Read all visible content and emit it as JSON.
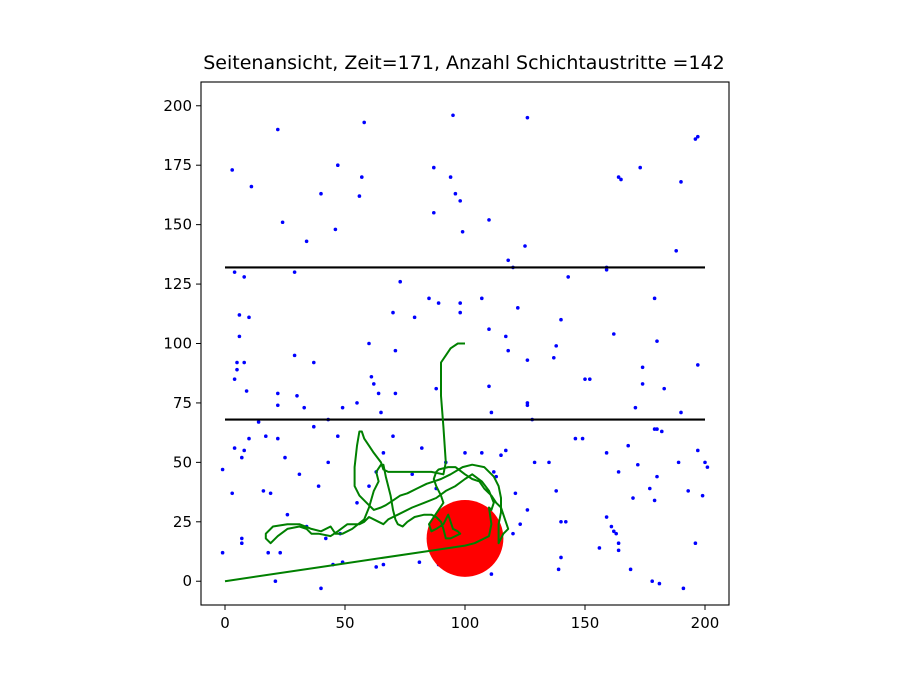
{
  "chart_data": {
    "type": "scatter",
    "title": "Seitenansicht, Zeit=171, Anzahl Schichtaustritte =142",
    "xlabel": "",
    "ylabel": "",
    "xlim": [
      -10,
      210
    ],
    "ylim": [
      -10,
      210
    ],
    "xticks": [
      0,
      50,
      100,
      150,
      200
    ],
    "yticks": [
      0,
      25,
      50,
      75,
      100,
      125,
      150,
      175,
      200
    ],
    "grid": false,
    "legend": "none",
    "colors": {
      "points": "#0000ff",
      "path": "#008000",
      "layers": "#000000",
      "marker": "#ff0000"
    },
    "layer_lines": [
      {
        "y": 68,
        "x": [
          0,
          200
        ]
      },
      {
        "y": 132,
        "x": [
          0,
          200
        ]
      }
    ],
    "current_position": {
      "x": 100,
      "y": 18,
      "radius": 16
    },
    "points": [
      [
        22,
        190
      ],
      [
        58,
        193
      ],
      [
        95,
        196
      ],
      [
        126,
        195
      ],
      [
        3,
        173
      ],
      [
        11,
        166
      ],
      [
        47,
        175
      ],
      [
        57,
        170
      ],
      [
        56,
        162
      ],
      [
        40,
        163
      ],
      [
        24,
        151
      ],
      [
        46,
        148
      ],
      [
        34,
        143
      ],
      [
        87,
        174
      ],
      [
        94,
        170
      ],
      [
        96,
        163
      ],
      [
        98,
        160
      ],
      [
        87,
        155
      ],
      [
        99,
        147
      ],
      [
        110,
        152
      ],
      [
        118,
        135
      ],
      [
        125,
        141
      ],
      [
        120,
        132
      ],
      [
        159,
        132
      ],
      [
        164,
        170
      ],
      [
        165,
        169
      ],
      [
        173,
        174
      ],
      [
        190,
        168
      ],
      [
        196,
        186
      ],
      [
        197,
        187
      ],
      [
        188,
        139
      ],
      [
        4,
        130
      ],
      [
        8,
        128
      ],
      [
        29,
        130
      ],
      [
        6,
        112
      ],
      [
        10,
        111
      ],
      [
        6,
        103
      ],
      [
        5,
        92
      ],
      [
        8,
        92
      ],
      [
        5,
        89
      ],
      [
        4,
        85
      ],
      [
        9,
        80
      ],
      [
        14,
        67
      ],
      [
        22,
        79
      ],
      [
        22,
        74
      ],
      [
        29,
        95
      ],
      [
        30,
        78
      ],
      [
        33,
        73
      ],
      [
        37,
        92
      ],
      [
        43,
        68
      ],
      [
        49,
        73
      ],
      [
        55,
        75
      ],
      [
        60,
        100
      ],
      [
        61,
        86
      ],
      [
        62,
        83
      ],
      [
        64,
        79
      ],
      [
        65,
        71
      ],
      [
        70,
        113
      ],
      [
        71,
        97
      ],
      [
        73,
        126
      ],
      [
        71,
        79
      ],
      [
        79,
        111
      ],
      [
        85,
        119
      ],
      [
        89,
        117
      ],
      [
        88,
        81
      ],
      [
        98,
        117
      ],
      [
        98,
        113
      ],
      [
        107,
        119
      ],
      [
        110,
        82
      ],
      [
        110,
        106
      ],
      [
        111,
        71
      ],
      [
        117,
        103
      ],
      [
        118,
        97
      ],
      [
        122,
        115
      ],
      [
        126,
        93
      ],
      [
        126,
        74
      ],
      [
        126,
        75
      ],
      [
        128,
        68
      ],
      [
        137,
        94
      ],
      [
        138,
        99
      ],
      [
        143,
        128
      ],
      [
        140,
        110
      ],
      [
        150,
        85
      ],
      [
        152,
        85
      ],
      [
        159,
        131
      ],
      [
        162,
        104
      ],
      [
        171,
        73
      ],
      [
        174,
        90
      ],
      [
        174,
        83
      ],
      [
        179,
        119
      ],
      [
        180,
        101
      ],
      [
        183,
        81
      ],
      [
        190,
        71
      ],
      [
        197,
        91
      ],
      [
        180,
        64
      ],
      [
        179,
        64
      ],
      [
        -1,
        47
      ],
      [
        3,
        37
      ],
      [
        4,
        56
      ],
      [
        7,
        52
      ],
      [
        8,
        55
      ],
      [
        10,
        60
      ],
      [
        17,
        61
      ],
      [
        16,
        38
      ],
      [
        19,
        37
      ],
      [
        22,
        60
      ],
      [
        25,
        52
      ],
      [
        31,
        45
      ],
      [
        34,
        23
      ],
      [
        37,
        65
      ],
      [
        39,
        40
      ],
      [
        43,
        50
      ],
      [
        47,
        61
      ],
      [
        42,
        18
      ],
      [
        48,
        20
      ],
      [
        55,
        33
      ],
      [
        60,
        40
      ],
      [
        63,
        46
      ],
      [
        66,
        54
      ],
      [
        70,
        61
      ],
      [
        78,
        45
      ],
      [
        82,
        56
      ],
      [
        88,
        39
      ],
      [
        92,
        50
      ],
      [
        100,
        54
      ],
      [
        107,
        54
      ],
      [
        112,
        46
      ],
      [
        113,
        44
      ],
      [
        115,
        53
      ],
      [
        117,
        55
      ],
      [
        121,
        37
      ],
      [
        123,
        24
      ],
      [
        126,
        30
      ],
      [
        129,
        50
      ],
      [
        135,
        50
      ],
      [
        138,
        38
      ],
      [
        140,
        25
      ],
      [
        142,
        25
      ],
      [
        146,
        60
      ],
      [
        149,
        60
      ],
      [
        156,
        14
      ],
      [
        159,
        27
      ],
      [
        161,
        23
      ],
      [
        162,
        21
      ],
      [
        163,
        20
      ],
      [
        164,
        16
      ],
      [
        164,
        13
      ],
      [
        159,
        54
      ],
      [
        164,
        46
      ],
      [
        168,
        57
      ],
      [
        170,
        35
      ],
      [
        172,
        49
      ],
      [
        177,
        39
      ],
      [
        179,
        34
      ],
      [
        180,
        44
      ],
      [
        182,
        63
      ],
      [
        189,
        50
      ],
      [
        193,
        38
      ],
      [
        197,
        55
      ],
      [
        199,
        36
      ],
      [
        200,
        50
      ],
      [
        201,
        48
      ],
      [
        196,
        16
      ],
      [
        -1,
        12
      ],
      [
        7,
        16
      ],
      [
        7,
        18
      ],
      [
        21,
        0
      ],
      [
        23,
        12
      ],
      [
        18,
        12
      ],
      [
        26,
        28
      ],
      [
        40,
        -3
      ],
      [
        45,
        7
      ],
      [
        49,
        8
      ],
      [
        63,
        6
      ],
      [
        66,
        7
      ],
      [
        81,
        8
      ],
      [
        89,
        7
      ],
      [
        104,
        15
      ],
      [
        107,
        10
      ],
      [
        111,
        3
      ],
      [
        139,
        5
      ],
      [
        140,
        10
      ],
      [
        169,
        5
      ],
      [
        178,
        0
      ],
      [
        181,
        -1
      ],
      [
        191,
        -3
      ],
      [
        120,
        20
      ]
    ],
    "path": [
      [
        0,
        0
      ],
      [
        40,
        6
      ],
      [
        80,
        12
      ],
      [
        100,
        15
      ],
      [
        104,
        16
      ],
      [
        110,
        19
      ],
      [
        111,
        24
      ],
      [
        110,
        31
      ],
      [
        111,
        30
      ],
      [
        112,
        33
      ],
      [
        110,
        38
      ],
      [
        107,
        42
      ],
      [
        103,
        45
      ],
      [
        100,
        43
      ],
      [
        96,
        40
      ],
      [
        92,
        38
      ],
      [
        88,
        35
      ],
      [
        83,
        33
      ],
      [
        78,
        31
      ],
      [
        72,
        28
      ],
      [
        68,
        26
      ],
      [
        66,
        24
      ],
      [
        64,
        25
      ],
      [
        60,
        27
      ],
      [
        58,
        25
      ],
      [
        56,
        24
      ],
      [
        51,
        24
      ],
      [
        47,
        21
      ],
      [
        44,
        19
      ],
      [
        39,
        20
      ],
      [
        36,
        20
      ],
      [
        34,
        22
      ],
      [
        31,
        23
      ],
      [
        26,
        22
      ],
      [
        22,
        19
      ],
      [
        19,
        16
      ],
      [
        17,
        18
      ],
      [
        17,
        20
      ],
      [
        20,
        23
      ],
      [
        26,
        24
      ],
      [
        31,
        24
      ],
      [
        36,
        22
      ],
      [
        40,
        21
      ],
      [
        44,
        23
      ],
      [
        46,
        20
      ],
      [
        49,
        20
      ],
      [
        53,
        22
      ],
      [
        58,
        26
      ],
      [
        60,
        31
      ],
      [
        62,
        38
      ],
      [
        64,
        42
      ],
      [
        63,
        46
      ],
      [
        65,
        49
      ],
      [
        66,
        49
      ],
      [
        67,
        44
      ],
      [
        69,
        36
      ],
      [
        70,
        30
      ],
      [
        71,
        26
      ],
      [
        72,
        24
      ],
      [
        74,
        23
      ],
      [
        76,
        25
      ],
      [
        79,
        27
      ],
      [
        83,
        28
      ],
      [
        86,
        28
      ],
      [
        88,
        27
      ],
      [
        90,
        25
      ],
      [
        91,
        22
      ],
      [
        92,
        18
      ],
      [
        94,
        18
      ],
      [
        96,
        19
      ],
      [
        98,
        20
      ],
      [
        97,
        21
      ],
      [
        95,
        22
      ],
      [
        94,
        25
      ],
      [
        93,
        28
      ],
      [
        91,
        24
      ],
      [
        88,
        22
      ],
      [
        86,
        21
      ],
      [
        85,
        24
      ],
      [
        87,
        27
      ],
      [
        89,
        30
      ],
      [
        91,
        33
      ],
      [
        90,
        36
      ],
      [
        88,
        40
      ],
      [
        87,
        43
      ],
      [
        88,
        46
      ],
      [
        89,
        47
      ],
      [
        93,
        48
      ],
      [
        96,
        48
      ],
      [
        100,
        45
      ],
      [
        103,
        43
      ],
      [
        106,
        42
      ],
      [
        108,
        39
      ],
      [
        111,
        36
      ],
      [
        113,
        33
      ],
      [
        115,
        31
      ],
      [
        116,
        28
      ],
      [
        117,
        25
      ],
      [
        118,
        22
      ],
      [
        116,
        20
      ],
      [
        115,
        18
      ],
      [
        114,
        16
      ],
      [
        114,
        24
      ],
      [
        115,
        29
      ],
      [
        115,
        35
      ],
      [
        114,
        40
      ],
      [
        112,
        44
      ],
      [
        108,
        48
      ],
      [
        103,
        49
      ],
      [
        99,
        48
      ],
      [
        94,
        45
      ],
      [
        90,
        43
      ],
      [
        87,
        42
      ],
      [
        84,
        41
      ],
      [
        80,
        39
      ],
      [
        76,
        37
      ],
      [
        73,
        36
      ],
      [
        70,
        34
      ],
      [
        67,
        32
      ],
      [
        65,
        31
      ],
      [
        62,
        30
      ],
      [
        59,
        33
      ],
      [
        56,
        36
      ],
      [
        54,
        40
      ],
      [
        54,
        48
      ],
      [
        55,
        57
      ],
      [
        56,
        63
      ],
      [
        57,
        63
      ],
      [
        58,
        60
      ],
      [
        60,
        57
      ],
      [
        62,
        54
      ],
      [
        65,
        50
      ],
      [
        66,
        47
      ],
      [
        68,
        46
      ],
      [
        78,
        46
      ],
      [
        86,
        46
      ],
      [
        91,
        45
      ],
      [
        91,
        45
      ],
      [
        92,
        50
      ],
      [
        91,
        65
      ],
      [
        90,
        78
      ],
      [
        90,
        83
      ],
      [
        90,
        92
      ],
      [
        92,
        95
      ],
      [
        94,
        98
      ],
      [
        97,
        100
      ],
      [
        100,
        100
      ]
    ]
  }
}
